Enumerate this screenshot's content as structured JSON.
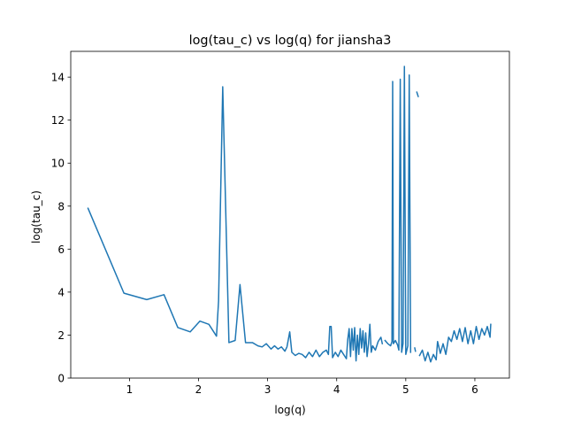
{
  "chart_data": {
    "type": "line",
    "title": "log(tau_c) vs log(q) for jiansha3",
    "xlabel": "log(q)",
    "ylabel": "log(tau_c)",
    "xlim": [
      0.15,
      6.5
    ],
    "ylim": [
      0,
      15.2
    ],
    "xticks": [
      1,
      2,
      3,
      4,
      5,
      6
    ],
    "yticks": [
      0,
      2,
      4,
      6,
      8,
      10,
      12,
      14
    ],
    "grid": false,
    "legend": "none",
    "series_color": "#1f77b4",
    "series": [
      {
        "segments": [
          [
            [
              0.4,
              7.9
            ],
            [
              0.92,
              3.95
            ],
            [
              1.25,
              3.65
            ],
            [
              1.5,
              3.88
            ],
            [
              1.7,
              2.35
            ],
            [
              1.88,
              2.15
            ],
            [
              2.02,
              2.65
            ],
            [
              2.15,
              2.5
            ],
            [
              2.26,
              1.95
            ],
            [
              2.29,
              3.6
            ],
            [
              2.35,
              13.55
            ],
            [
              2.44,
              1.65
            ],
            [
              2.53,
              1.75
            ],
            [
              2.6,
              4.35
            ],
            [
              2.68,
              1.65
            ],
            [
              2.78,
              1.65
            ],
            [
              2.86,
              1.5
            ],
            [
              2.92,
              1.45
            ],
            [
              2.98,
              1.6
            ],
            [
              3.05,
              1.35
            ],
            [
              3.1,
              1.5
            ],
            [
              3.15,
              1.35
            ],
            [
              3.2,
              1.45
            ],
            [
              3.25,
              1.25
            ],
            [
              3.28,
              1.45
            ],
            [
              3.32,
              2.15
            ],
            [
              3.35,
              1.2
            ],
            [
              3.4,
              1.05
            ],
            [
              3.45,
              1.15
            ],
            [
              3.5,
              1.1
            ],
            [
              3.55,
              0.95
            ],
            [
              3.6,
              1.2
            ],
            [
              3.65,
              1.0
            ],
            [
              3.7,
              1.3
            ],
            [
              3.75,
              1.0
            ],
            [
              3.8,
              1.2
            ],
            [
              3.85,
              1.3
            ],
            [
              3.88,
              1.1
            ],
            [
              3.9,
              2.4
            ],
            [
              3.92,
              2.4
            ],
            [
              3.94,
              0.95
            ],
            [
              3.98,
              1.2
            ],
            [
              4.02,
              1.0
            ],
            [
              4.06,
              1.3
            ],
            [
              4.1,
              1.1
            ],
            [
              4.14,
              0.9
            ],
            [
              4.16,
              1.8
            ],
            [
              4.18,
              2.3
            ],
            [
              4.2,
              1.0
            ],
            [
              4.22,
              2.3
            ],
            [
              4.24,
              1.3
            ],
            [
              4.26,
              2.35
            ],
            [
              4.28,
              0.8
            ],
            [
              4.3,
              2.0
            ],
            [
              4.32,
              1.1
            ],
            [
              4.34,
              2.3
            ],
            [
              4.36,
              1.4
            ],
            [
              4.38,
              2.2
            ],
            [
              4.4,
              1.2
            ],
            [
              4.42,
              2.1
            ],
            [
              4.44,
              1.0
            ],
            [
              4.46,
              1.6
            ],
            [
              4.48,
              2.5
            ],
            [
              4.5,
              1.2
            ],
            [
              4.52,
              1.5
            ],
            [
              4.56,
              1.3
            ],
            [
              4.6,
              1.7
            ],
            [
              4.64,
              1.9
            ],
            [
              4.66,
              1.6
            ]
          ],
          [
            [
              4.7,
              1.75
            ],
            [
              4.74,
              1.6
            ],
            [
              4.78,
              1.5
            ],
            [
              4.8,
              1.7
            ],
            [
              4.81,
              13.8
            ],
            [
              4.82,
              1.6
            ],
            [
              4.85,
              1.75
            ],
            [
              4.88,
              1.55
            ],
            [
              4.9,
              1.3
            ],
            [
              4.92,
              13.9
            ],
            [
              4.94,
              1.2
            ],
            [
              4.96,
              1.6
            ],
            [
              4.98,
              14.5
            ],
            [
              5.0,
              1.1
            ],
            [
              5.03,
              1.5
            ],
            [
              5.05,
              14.1
            ],
            [
              5.07,
              1.2
            ]
          ],
          [
            [
              5.13,
              1.4
            ],
            [
              5.14,
              1.25
            ]
          ],
          [
            [
              5.16,
              13.3
            ],
            [
              5.18,
              13.1
            ]
          ],
          [
            [
              5.2,
              1.05
            ],
            [
              5.24,
              1.3
            ],
            [
              5.28,
              0.8
            ],
            [
              5.32,
              1.2
            ],
            [
              5.36,
              0.75
            ],
            [
              5.4,
              1.1
            ],
            [
              5.44,
              0.85
            ],
            [
              5.46,
              1.7
            ],
            [
              5.5,
              1.15
            ],
            [
              5.54,
              1.6
            ],
            [
              5.58,
              1.1
            ],
            [
              5.62,
              1.9
            ],
            [
              5.66,
              1.7
            ],
            [
              5.7,
              2.2
            ],
            [
              5.74,
              1.8
            ],
            [
              5.78,
              2.3
            ],
            [
              5.82,
              1.7
            ],
            [
              5.86,
              2.35
            ],
            [
              5.9,
              1.6
            ],
            [
              5.94,
              2.2
            ],
            [
              5.98,
              1.6
            ],
            [
              6.02,
              2.4
            ],
            [
              6.06,
              1.8
            ],
            [
              6.1,
              2.3
            ],
            [
              6.14,
              2.0
            ],
            [
              6.18,
              2.4
            ],
            [
              6.22,
              1.9
            ],
            [
              6.23,
              2.5
            ]
          ]
        ]
      }
    ]
  }
}
